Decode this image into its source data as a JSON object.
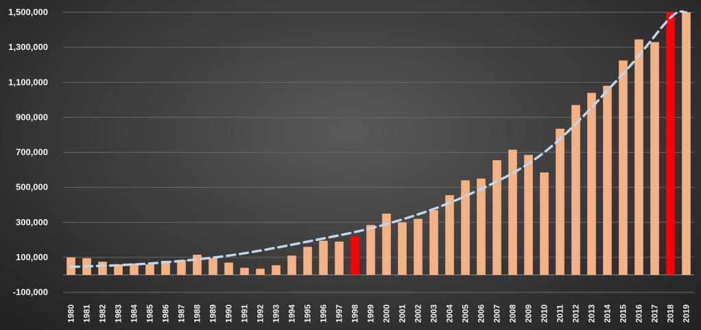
{
  "chart_data": {
    "type": "bar",
    "title": "",
    "xlabel": "",
    "ylabel": "",
    "ylim": [
      -100000,
      1500000
    ],
    "yticks": [
      -100000,
      100000,
      300000,
      500000,
      700000,
      900000,
      1100000,
      1300000,
      1500000
    ],
    "ytick_labels": [
      "-100,000",
      "100,000",
      "300,000",
      "500,000",
      "700,000",
      "900,000",
      "1,100,000",
      "1,300,000",
      "1,500,000"
    ],
    "grid": true,
    "legend": "none",
    "categories": [
      "1980",
      "1981",
      "1982",
      "1983",
      "1984",
      "1985",
      "1986",
      "1987",
      "1988",
      "1989",
      "1990",
      "1991",
      "1992",
      "1993",
      "1994",
      "1995",
      "1996",
      "1997",
      "1998",
      "1999",
      "2000",
      "2001",
      "2002",
      "2003",
      "2004",
      "2005",
      "2006",
      "2007",
      "2008",
      "2009",
      "2010",
      "2011",
      "2012",
      "2013",
      "2014",
      "2015",
      "2016",
      "2017",
      "2018",
      "2019"
    ],
    "values": [
      100000,
      95000,
      75000,
      60000,
      65000,
      60000,
      80000,
      85000,
      115000,
      95000,
      70000,
      40000,
      35000,
      55000,
      110000,
      160000,
      195000,
      190000,
      220000,
      285000,
      350000,
      300000,
      320000,
      370000,
      455000,
      540000,
      550000,
      655000,
      715000,
      685000,
      585000,
      835000,
      970000,
      1040000,
      1080000,
      1225000,
      1345000,
      1330000,
      1500000,
      1500000
    ],
    "highlighted_categories": [
      "1998",
      "2018"
    ],
    "trendline": {
      "style": "dashed",
      "x": [
        "1980",
        "1985",
        "1990",
        "1995",
        "2000",
        "2005",
        "2010",
        "2015",
        "2018",
        "2019"
      ],
      "values": [
        45000,
        65000,
        110000,
        190000,
        290000,
        450000,
        700000,
        1150000,
        1470000,
        1500000
      ]
    },
    "colors": {
      "bar": "#f4b183",
      "highlight": "#ff0000",
      "trend": "#bdd7ee",
      "grid": "#6a6a6a",
      "text": "#f2f2f2"
    }
  }
}
